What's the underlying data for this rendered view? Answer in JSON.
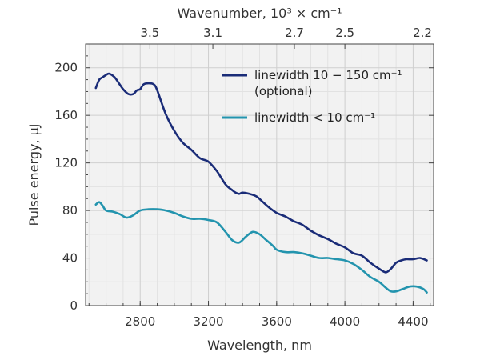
{
  "chart_data": {
    "type": "line",
    "xlabel": "Wavelength, nm",
    "ylabel": "Pulse energy, µJ",
    "x2label": "Wavenumber, 10³ × cm⁻¹",
    "xlim": [
      2480,
      4520
    ],
    "ylim": [
      0,
      220
    ],
    "xticks": [
      2800,
      3200,
      3600,
      4000,
      4400
    ],
    "yticks": [
      0,
      40,
      80,
      120,
      160,
      200
    ],
    "x2ticks": [
      {
        "label": "3.5",
        "at": 2857
      },
      {
        "label": "3.1",
        "at": 3226
      },
      {
        "label": "2.7",
        "at": 3704
      },
      {
        "label": "2.5",
        "at": 4000
      },
      {
        "label": "2.2",
        "at": 4545
      }
    ],
    "grid": true,
    "legend": "top-right",
    "series": [
      {
        "name_lines": [
          "linewidth 10 − 150 cm⁻¹",
          "(optional)"
        ],
        "color": "#1a2c78",
        "x": [
          2540,
          2560,
          2580,
          2600,
          2620,
          2650,
          2680,
          2700,
          2730,
          2760,
          2780,
          2800,
          2820,
          2850,
          2880,
          2900,
          2950,
          3000,
          3050,
          3100,
          3150,
          3200,
          3250,
          3300,
          3340,
          3360,
          3380,
          3400,
          3440,
          3480,
          3520,
          3560,
          3600,
          3650,
          3700,
          3750,
          3800,
          3850,
          3900,
          3950,
          4000,
          4050,
          4100,
          4150,
          4200,
          4240,
          4270,
          4300,
          4330,
          4360,
          4400,
          4440,
          4480
        ],
        "y": [
          183,
          190,
          192,
          194,
          195,
          192,
          186,
          182,
          178,
          178,
          181,
          182,
          186,
          187,
          186,
          181,
          161,
          147,
          137,
          131,
          124,
          121,
          113,
          102,
          97,
          95,
          94,
          95,
          94,
          92,
          87,
          82,
          78,
          75,
          71,
          68,
          63,
          59,
          56,
          52,
          49,
          44,
          42,
          36,
          31,
          28,
          31,
          36,
          38,
          39,
          39,
          40,
          38
        ]
      },
      {
        "name_lines": [
          "linewidth < 10 cm⁻¹"
        ],
        "color": "#2394ae",
        "x": [
          2540,
          2560,
          2580,
          2600,
          2640,
          2680,
          2720,
          2760,
          2800,
          2850,
          2900,
          2950,
          3000,
          3050,
          3100,
          3150,
          3200,
          3250,
          3300,
          3340,
          3380,
          3420,
          3460,
          3500,
          3540,
          3580,
          3600,
          3650,
          3700,
          3750,
          3800,
          3850,
          3900,
          3950,
          4000,
          4050,
          4100,
          4150,
          4200,
          4240,
          4270,
          4300,
          4340,
          4380,
          4420,
          4460,
          4480
        ],
        "y": [
          85,
          87,
          84,
          80,
          79,
          77,
          74,
          76,
          80,
          81,
          81,
          80,
          78,
          75,
          73,
          73,
          72,
          70,
          62,
          55,
          53,
          58,
          62,
          60,
          55,
          50,
          47,
          45,
          45,
          44,
          42,
          40,
          40,
          39,
          38,
          35,
          30,
          24,
          20,
          15,
          12,
          12,
          14,
          16,
          16,
          14,
          11
        ]
      }
    ]
  }
}
